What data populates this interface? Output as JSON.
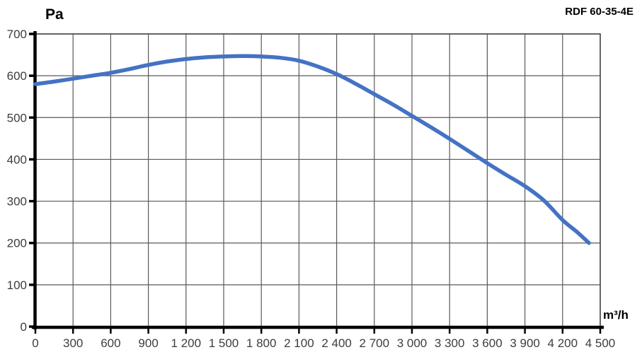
{
  "title": "RDF 60-35-4E",
  "y_axis": {
    "unit_label": "Pa",
    "tick_values": [
      0,
      100,
      200,
      300,
      400,
      500,
      600,
      700
    ],
    "tick_labels": [
      "0",
      "100",
      "200",
      "300",
      "400",
      "500",
      "600",
      "700"
    ]
  },
  "x_axis": {
    "unit_label": "m³/h",
    "tick_values": [
      0,
      300,
      600,
      900,
      1200,
      1500,
      1800,
      2100,
      2400,
      2700,
      3000,
      3300,
      3600,
      3900,
      4200,
      4500
    ],
    "tick_labels": [
      "0",
      "300",
      "600",
      "900",
      "1 200",
      "1 500",
      "1 800",
      "2 100",
      "2 400",
      "2 700",
      "3 000",
      "3 300",
      "3 600",
      "3 900",
      "4 200",
      "4 500"
    ]
  },
  "colors": {
    "curve": "#4472C4",
    "grid": "#595959",
    "border": "#3f3f3f",
    "axis": "#000000",
    "tick_text": "#3d3d3d",
    "background": "#ffffff"
  },
  "chart_data": {
    "type": "line",
    "title": "RDF 60-35-4E",
    "xlabel": "m³/h",
    "ylabel": "Pa",
    "xlim": [
      0,
      4500
    ],
    "ylim": [
      0,
      700
    ],
    "grid": true,
    "legend": "none",
    "series": [
      {
        "name": "RDF 60-35-4E fan curve",
        "color": "#4472C4",
        "points": [
          [
            0,
            580
          ],
          [
            150,
            586
          ],
          [
            300,
            593
          ],
          [
            450,
            600
          ],
          [
            600,
            607
          ],
          [
            750,
            616
          ],
          [
            900,
            626
          ],
          [
            1050,
            634
          ],
          [
            1200,
            640
          ],
          [
            1350,
            644
          ],
          [
            1500,
            646
          ],
          [
            1650,
            647
          ],
          [
            1800,
            646
          ],
          [
            1950,
            643
          ],
          [
            2100,
            636
          ],
          [
            2250,
            622
          ],
          [
            2400,
            604
          ],
          [
            2550,
            581
          ],
          [
            2700,
            556
          ],
          [
            2850,
            531
          ],
          [
            3000,
            504
          ],
          [
            3150,
            477
          ],
          [
            3300,
            449
          ],
          [
            3450,
            420
          ],
          [
            3600,
            391
          ],
          [
            3750,
            363
          ],
          [
            3900,
            336
          ],
          [
            4050,
            302
          ],
          [
            4200,
            255
          ],
          [
            4320,
            225
          ],
          [
            4410,
            200
          ]
        ]
      }
    ]
  }
}
